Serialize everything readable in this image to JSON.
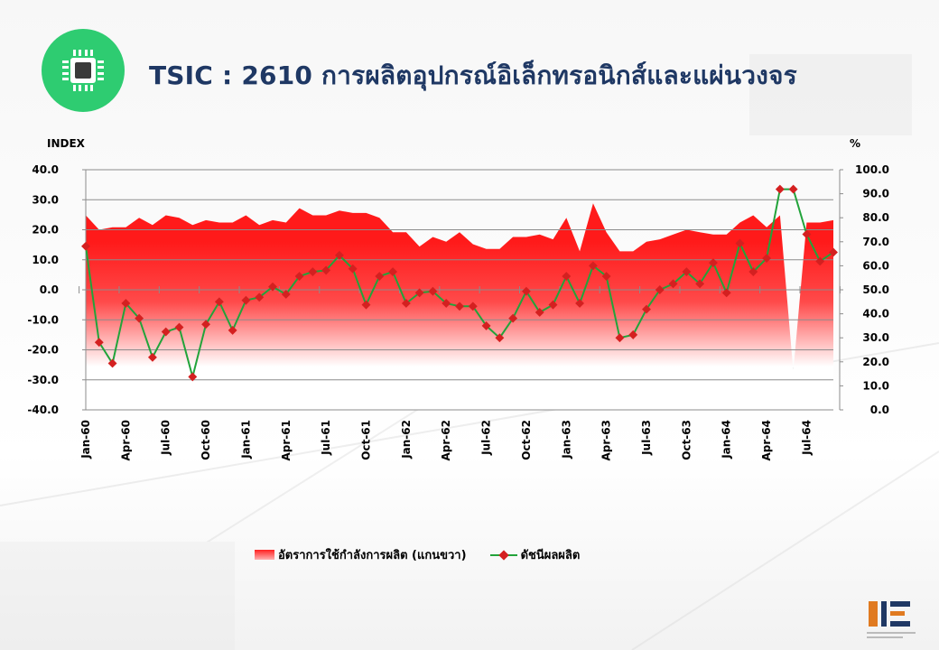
{
  "header": {
    "title": "TSIC : 2610 การผลิตอุปกรณ์อิเล็กทรอนิกส์และแผ่นวงจร"
  },
  "icon": "microchip-icon",
  "colors": {
    "area_top": "#ff1a1a",
    "area_bottom": "#ffffff",
    "line": "#22a33a",
    "marker": "#d42020",
    "title": "#1f3864",
    "icon_bg": "#2ecc71"
  },
  "chart_data": {
    "type": "line",
    "left_axis_label": "INDEX",
    "right_axis_label": "%",
    "left_ylim": [
      -40,
      40
    ],
    "left_ticks": [
      "40.0",
      "30.0",
      "20.0",
      "10.0",
      "0.0",
      "-10.0",
      "-20.0",
      "-30.0",
      "-40.0"
    ],
    "right_ylim": [
      0,
      100
    ],
    "right_ticks": [
      "100.0",
      "90.0",
      "80.0",
      "70.0",
      "60.0",
      "50.0",
      "40.0",
      "30.0",
      "20.0",
      "10.0",
      "0.0"
    ],
    "x_labels": [
      "Jan-60",
      "Apr-60",
      "Jul-60",
      "Oct-60",
      "Jan-61",
      "Apr-61",
      "Jul-61",
      "Oct-61",
      "Jan-62",
      "Apr-62",
      "Jul-62",
      "Oct-62",
      "Jan-63",
      "Apr-63",
      "Jul-63",
      "Oct-63",
      "Jan-64",
      "Apr-64",
      "Jul-64"
    ],
    "x_label_every": 3,
    "grid": "horizontal",
    "legend_position": "bottom",
    "series": [
      {
        "name": "อัตราการใช้กำลังการผลิต (แกนขวา)",
        "kind": "area",
        "axis": "right",
        "values": [
          81,
          75,
          76,
          76,
          80,
          77,
          81,
          80,
          77,
          79,
          78,
          78,
          81,
          77,
          79,
          78,
          84,
          81,
          81,
          83,
          82,
          82,
          80,
          74,
          74,
          68,
          72,
          70,
          74,
          69,
          67,
          67,
          72,
          72,
          73,
          71,
          80,
          66,
          86,
          74,
          66,
          66,
          70,
          71,
          73,
          75,
          74,
          73,
          73,
          78,
          81,
          76,
          81,
          16,
          78,
          78,
          79
        ]
      },
      {
        "name": "ดัชนีผลผลิต",
        "kind": "line",
        "axis": "left",
        "values": [
          14.5,
          -17.5,
          -24.5,
          -4.5,
          -9.5,
          -22.5,
          -14,
          -12.5,
          -29,
          -11.5,
          -4,
          -13.5,
          -3.5,
          -2.5,
          1,
          -1.5,
          4.5,
          6,
          6.5,
          11.5,
          7,
          -5,
          4.5,
          6,
          -4.5,
          -1,
          -0.5,
          -4.5,
          -5.5,
          -5.5,
          -12,
          -16,
          -9.5,
          -0.5,
          -7.5,
          -5,
          4.5,
          -4.5,
          8,
          4.5,
          -16,
          -15,
          -6.5,
          0,
          2,
          6,
          2,
          9,
          -1,
          15.5,
          6,
          10.5,
          33.5,
          33.5,
          18.5,
          9.5,
          12.5
        ]
      }
    ]
  },
  "legend": {
    "area_label": "อัตราการใช้กำลังการผลิต (แกนขวา)",
    "line_label": "ดัชนีผลผลิต"
  },
  "logo": {
    "text": "OIE"
  }
}
